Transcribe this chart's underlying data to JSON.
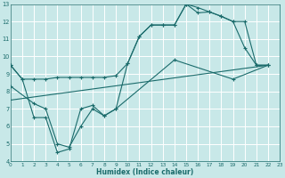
{
  "xlabel": "Humidex (Indice chaleur)",
  "bg_color": "#c8e8e8",
  "grid_color": "#ffffff",
  "line_color": "#1a6b6b",
  "xlim": [
    0,
    23
  ],
  "ylim": [
    4,
    13
  ],
  "yticks": [
    4,
    5,
    6,
    7,
    8,
    9,
    10,
    11,
    12,
    13
  ],
  "xticks": [
    0,
    1,
    2,
    3,
    4,
    5,
    6,
    7,
    8,
    9,
    10,
    11,
    12,
    13,
    14,
    15,
    16,
    17,
    18,
    19,
    20,
    21,
    22,
    23
  ],
  "line1_x": [
    0,
    1,
    2,
    3,
    4,
    5,
    6,
    7,
    8,
    9,
    10,
    11,
    12,
    13,
    14,
    15,
    16,
    17,
    18,
    19,
    20,
    21,
    22
  ],
  "line1_y": [
    9.5,
    8.7,
    8.7,
    8.7,
    8.8,
    8.8,
    8.8,
    8.8,
    8.8,
    8.9,
    9.6,
    11.15,
    11.8,
    11.8,
    11.8,
    13.0,
    12.8,
    12.55,
    12.3,
    12.0,
    10.5,
    9.5,
    9.5
  ],
  "line2_x": [
    0,
    1,
    2,
    3,
    4,
    5,
    6,
    7,
    8,
    9,
    10,
    11,
    12,
    13,
    14,
    15,
    16,
    17,
    18,
    19,
    20,
    21,
    22
  ],
  "line2_y": [
    9.5,
    8.7,
    6.5,
    6.5,
    4.5,
    4.7,
    7.0,
    7.2,
    6.6,
    7.0,
    9.6,
    11.15,
    11.8,
    11.8,
    11.8,
    13.0,
    12.5,
    12.55,
    12.3,
    12.0,
    12.0,
    9.5,
    9.5
  ],
  "line3_x": [
    0,
    2,
    3,
    4,
    5,
    6,
    7,
    8,
    9,
    14,
    19,
    22
  ],
  "line3_y": [
    8.3,
    7.3,
    7.0,
    5.0,
    4.8,
    6.0,
    7.0,
    6.6,
    7.0,
    9.8,
    8.7,
    9.5
  ],
  "line4_x": [
    0,
    22
  ],
  "line4_y": [
    7.5,
    9.5
  ]
}
